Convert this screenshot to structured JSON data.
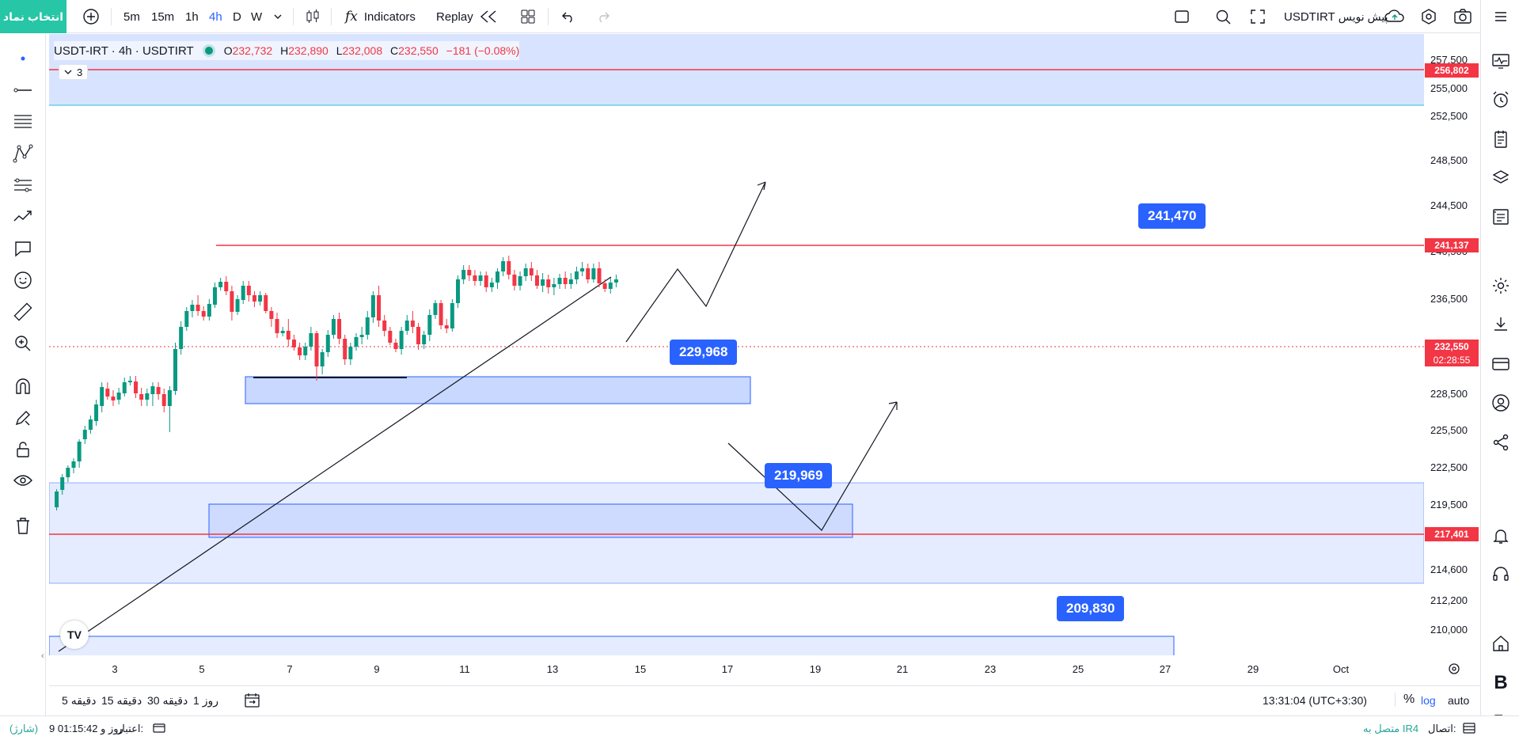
{
  "topbar": {
    "symbol_search": "انتخاب نماد",
    "intervals": [
      "5m",
      "15m",
      "1h",
      "4h",
      "D",
      "W"
    ],
    "active_interval": "4h",
    "indicators_label": "Indicators",
    "replay_label": "Replay",
    "symbol_name": "USDTIRT",
    "draft_label": "پیش نویس"
  },
  "legend": {
    "title": "USDT-IRT · 4h · USDTIRT",
    "open_label": "O",
    "open": "232,732",
    "high_label": "H",
    "high": "232,890",
    "low_label": "L",
    "low": "232,008",
    "close_label": "C",
    "close": "232,550",
    "change": "−181 (−0.08%)",
    "collapsed_count": "3"
  },
  "price_axis": {
    "ticks": [
      "257,500",
      "255,000",
      "252,500",
      "248,500",
      "244,500",
      "240,500",
      "236,500",
      "228,500",
      "225,500",
      "222,500",
      "219,500",
      "214,600",
      "212,200",
      "210,000"
    ],
    "tag_top": "256,802",
    "tag_resistance": "241,137",
    "tag_current": "232,550",
    "tag_countdown": "02:28:55",
    "tag_support": "217,401"
  },
  "time_axis": {
    "ticks": [
      "3",
      "5",
      "7",
      "9",
      "11",
      "13",
      "15",
      "17",
      "19",
      "21",
      "23",
      "25",
      "27",
      "29",
      "Oct"
    ]
  },
  "labels": {
    "l1": "241,470",
    "l2": "229,968",
    "l3": "219,969",
    "l4": "209,830"
  },
  "bottombar": {
    "ranges": [
      "5 دقیقه",
      "15 دقیقه",
      "30 دقیقه",
      "1 روز"
    ],
    "clock": "13:31:04 (UTC+3:30)",
    "percent": "%",
    "log": "log",
    "auto": "auto"
  },
  "statusbar": {
    "connection_label": "اتصال:",
    "connection_value": "متصل به IR4",
    "credit_label": "اعتبار:",
    "credit_value": "9 روز و 01:15:42",
    "charge": "(شارژ)"
  },
  "chart_data": {
    "type": "candlestick",
    "title": "USDT-IRT · 4h · USDTIRT",
    "ylim": [
      208000,
      259000
    ],
    "x_labels": [
      "3",
      "5",
      "7",
      "9",
      "11",
      "13",
      "15",
      "17",
      "19",
      "21",
      "23",
      "25",
      "27",
      "29",
      "Oct"
    ],
    "horizontal_lines": [
      256802,
      241137,
      217401
    ],
    "current_price": 232550,
    "annotations": [
      241470,
      229968,
      219969,
      209830
    ]
  },
  "colors": {
    "up": "#089981",
    "down": "#f23645",
    "accent": "#2962ff",
    "zone_fill": "#2962ff",
    "symbol_btn": "#26c6a6"
  }
}
